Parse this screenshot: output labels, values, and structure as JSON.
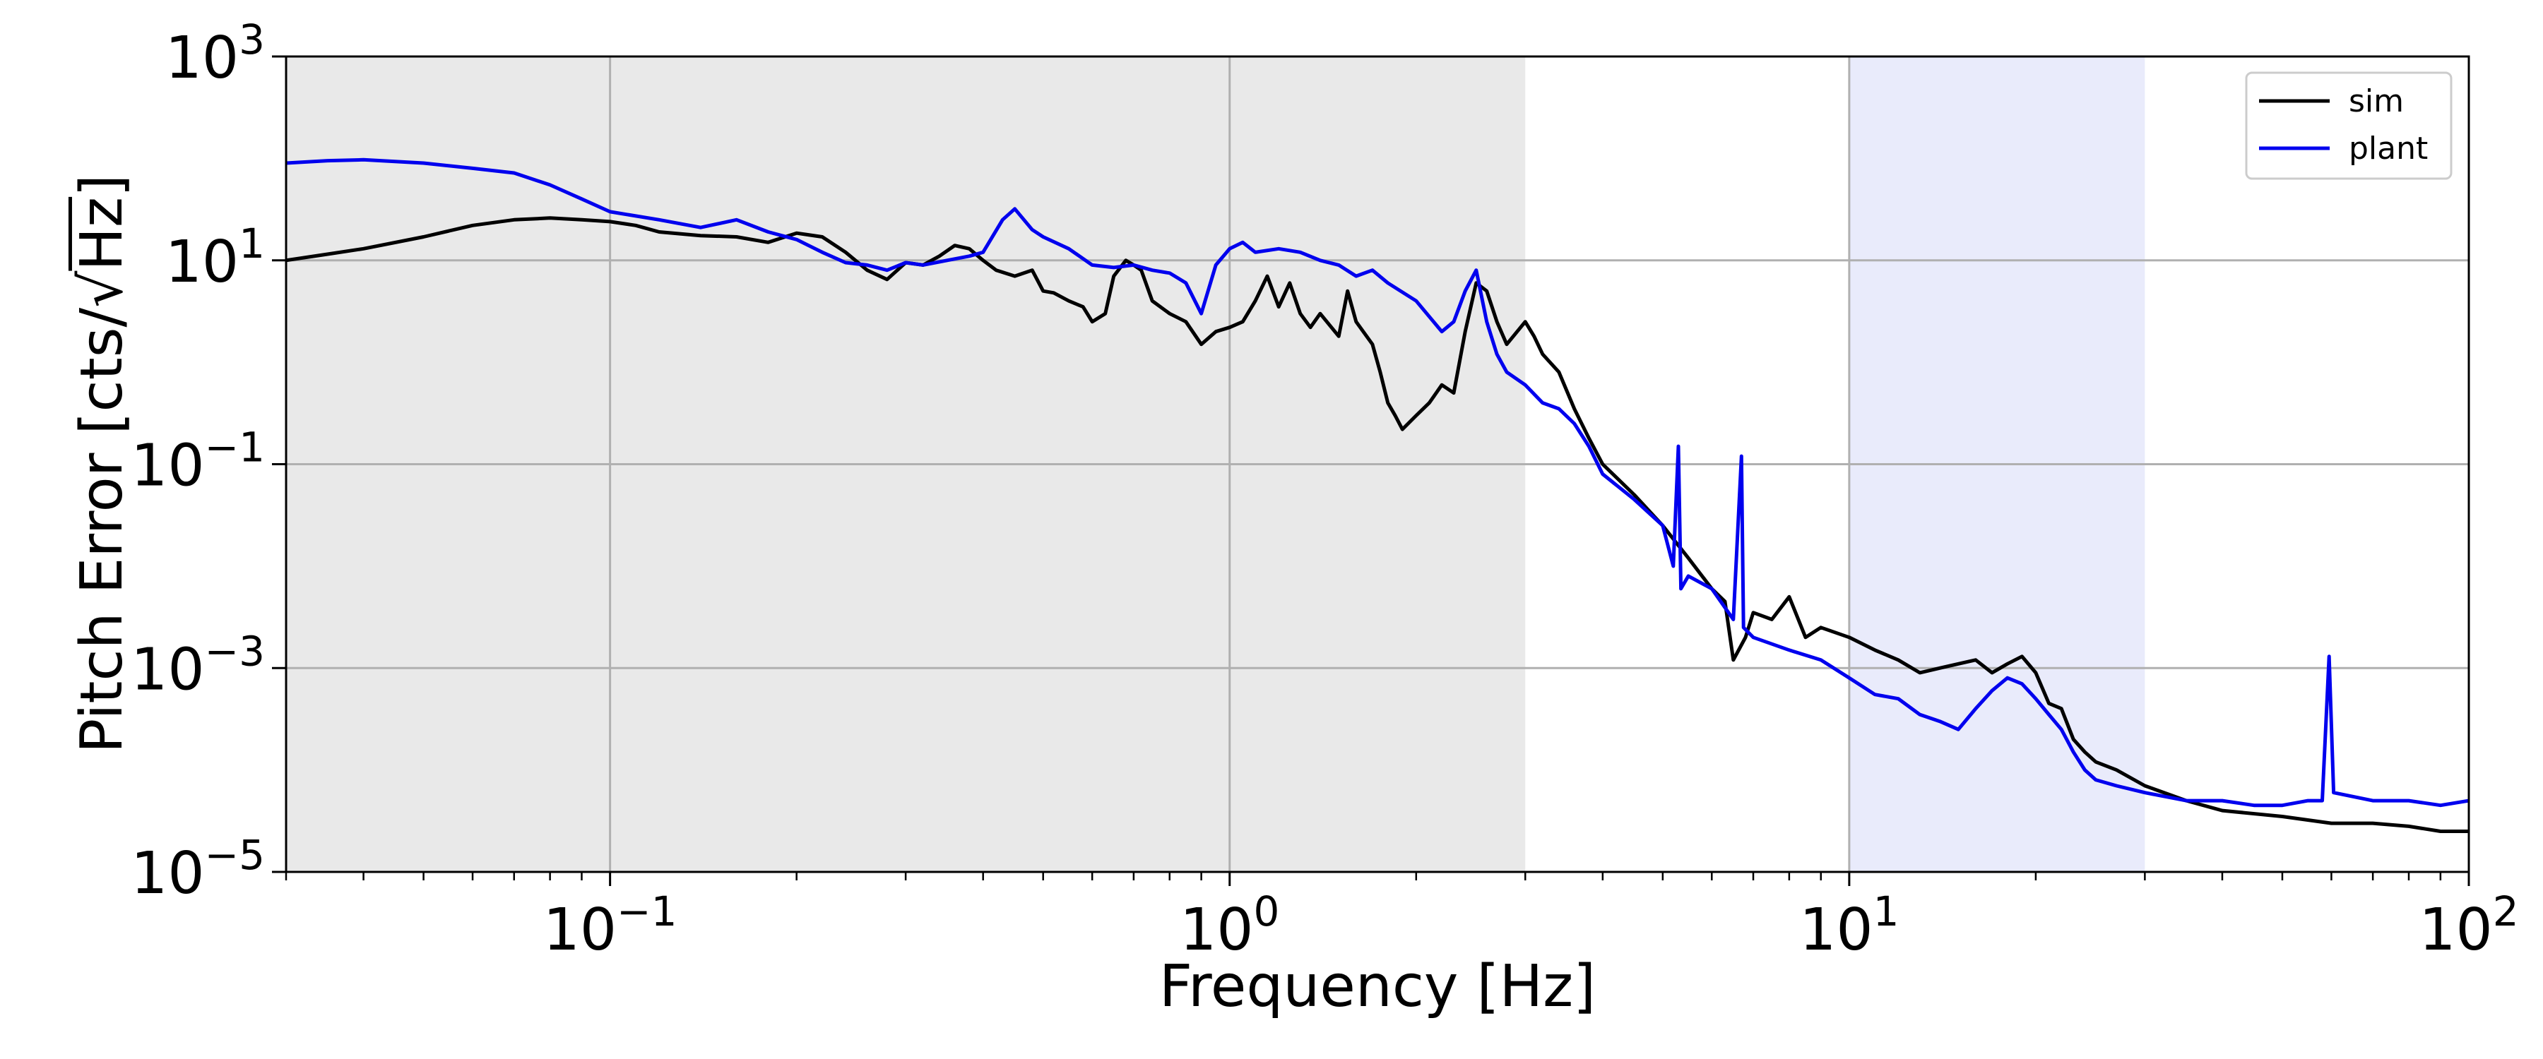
{
  "chart_data": {
    "type": "line",
    "xscale": "log",
    "yscale": "log",
    "xlim": [
      0.03,
      100
    ],
    "ylim": [
      1e-05,
      1000
    ],
    "xlabel": "Frequency [Hz]",
    "ylabel_main": "Pitch Error [cts/",
    "ylabel_sqrt": "√",
    "ylabel_radicand": "Hz",
    "ylabel_close": "]",
    "x_ticks": [
      {
        "value": 0.1,
        "base": "10",
        "exp": "−1"
      },
      {
        "value": 1,
        "base": "10",
        "exp": "0"
      },
      {
        "value": 10,
        "base": "10",
        "exp": "1"
      },
      {
        "value": 100,
        "base": "10",
        "exp": "2"
      }
    ],
    "y_ticks": [
      {
        "value": 1e-05,
        "base": "10",
        "exp": "−5"
      },
      {
        "value": 0.001,
        "base": "10",
        "exp": "−3"
      },
      {
        "value": 0.1,
        "base": "10",
        "exp": "−1"
      },
      {
        "value": 10,
        "base": "10",
        "exp": "1"
      },
      {
        "value": 1000,
        "base": "10",
        "exp": "3"
      }
    ],
    "grid": true,
    "legend_position": "top-right",
    "shaded_regions": [
      {
        "x": [
          0.03,
          3
        ],
        "color": "#e9e9e9"
      },
      {
        "x": [
          10,
          30
        ],
        "color": "#e9ebfb"
      }
    ],
    "series": [
      {
        "name": "sim",
        "color": "#000000",
        "points": [
          [
            0.03,
            10
          ],
          [
            0.035,
            11.5
          ],
          [
            0.04,
            13
          ],
          [
            0.05,
            17
          ],
          [
            0.06,
            22
          ],
          [
            0.07,
            25
          ],
          [
            0.08,
            26
          ],
          [
            0.09,
            25
          ],
          [
            0.1,
            24
          ],
          [
            0.11,
            22
          ],
          [
            0.12,
            19
          ],
          [
            0.14,
            17.5
          ],
          [
            0.16,
            17
          ],
          [
            0.18,
            15
          ],
          [
            0.2,
            18.5
          ],
          [
            0.22,
            17
          ],
          [
            0.24,
            12
          ],
          [
            0.26,
            8
          ],
          [
            0.28,
            6.5
          ],
          [
            0.3,
            9.5
          ],
          [
            0.32,
            9
          ],
          [
            0.34,
            11
          ],
          [
            0.36,
            14
          ],
          [
            0.38,
            13
          ],
          [
            0.4,
            10
          ],
          [
            0.42,
            8
          ],
          [
            0.45,
            7
          ],
          [
            0.48,
            8
          ],
          [
            0.5,
            5
          ],
          [
            0.52,
            4.8
          ],
          [
            0.55,
            4
          ],
          [
            0.58,
            3.5
          ],
          [
            0.6,
            2.5
          ],
          [
            0.63,
            3
          ],
          [
            0.65,
            7
          ],
          [
            0.68,
            10
          ],
          [
            0.7,
            9
          ],
          [
            0.72,
            8
          ],
          [
            0.75,
            4
          ],
          [
            0.8,
            3
          ],
          [
            0.85,
            2.5
          ],
          [
            0.9,
            1.5
          ],
          [
            0.95,
            2
          ],
          [
            1.0,
            2.2
          ],
          [
            1.05,
            2.5
          ],
          [
            1.1,
            4
          ],
          [
            1.15,
            7
          ],
          [
            1.2,
            3.5
          ],
          [
            1.25,
            6
          ],
          [
            1.3,
            3
          ],
          [
            1.35,
            2.2
          ],
          [
            1.4,
            3
          ],
          [
            1.5,
            1.8
          ],
          [
            1.55,
            5
          ],
          [
            1.6,
            2.5
          ],
          [
            1.7,
            1.5
          ],
          [
            1.75,
            0.8
          ],
          [
            1.8,
            0.4
          ],
          [
            1.85,
            0.3
          ],
          [
            1.9,
            0.22
          ],
          [
            2.0,
            0.3
          ],
          [
            2.1,
            0.4
          ],
          [
            2.2,
            0.6
          ],
          [
            2.3,
            0.5
          ],
          [
            2.4,
            2
          ],
          [
            2.5,
            6
          ],
          [
            2.6,
            5
          ],
          [
            2.7,
            2.5
          ],
          [
            2.8,
            1.5
          ],
          [
            3.0,
            2.5
          ],
          [
            3.1,
            1.8
          ],
          [
            3.2,
            1.2
          ],
          [
            3.4,
            0.8
          ],
          [
            3.6,
            0.35
          ],
          [
            3.8,
            0.18
          ],
          [
            4.0,
            0.1
          ],
          [
            4.5,
            0.05
          ],
          [
            5.0,
            0.025
          ],
          [
            5.5,
            0.012
          ],
          [
            6.0,
            0.006
          ],
          [
            6.3,
            0.0045
          ],
          [
            6.5,
            0.0012
          ],
          [
            6.8,
            0.002
          ],
          [
            7.0,
            0.0035
          ],
          [
            7.5,
            0.003
          ],
          [
            8.0,
            0.005
          ],
          [
            8.5,
            0.002
          ],
          [
            9,
            0.0025
          ],
          [
            10,
            0.002
          ],
          [
            11,
            0.0015
          ],
          [
            12,
            0.0012
          ],
          [
            13,
            0.0009
          ],
          [
            14,
            0.001
          ],
          [
            15,
            0.0011
          ],
          [
            16,
            0.0012
          ],
          [
            17,
            0.0009
          ],
          [
            18,
            0.0011
          ],
          [
            19,
            0.0013
          ],
          [
            20,
            0.0009
          ],
          [
            21,
            0.00045
          ],
          [
            22,
            0.0004
          ],
          [
            23,
            0.0002
          ],
          [
            24,
            0.00015
          ],
          [
            25,
            0.00012
          ],
          [
            27,
            0.0001
          ],
          [
            30,
            7e-05
          ],
          [
            35,
            5e-05
          ],
          [
            40,
            4e-05
          ],
          [
            50,
            3.5e-05
          ],
          [
            60,
            3e-05
          ],
          [
            70,
            3e-05
          ],
          [
            80,
            2.8e-05
          ],
          [
            90,
            2.5e-05
          ],
          [
            100,
            2.5e-05
          ]
        ]
      },
      {
        "name": "plant",
        "color": "#0000ee",
        "points": [
          [
            0.03,
            90
          ],
          [
            0.035,
            95
          ],
          [
            0.04,
            97
          ],
          [
            0.05,
            90
          ],
          [
            0.06,
            80
          ],
          [
            0.07,
            72
          ],
          [
            0.08,
            55
          ],
          [
            0.09,
            40
          ],
          [
            0.1,
            30
          ],
          [
            0.12,
            25
          ],
          [
            0.14,
            21
          ],
          [
            0.16,
            25
          ],
          [
            0.18,
            19
          ],
          [
            0.2,
            16
          ],
          [
            0.22,
            12
          ],
          [
            0.24,
            9.5
          ],
          [
            0.26,
            9
          ],
          [
            0.28,
            8
          ],
          [
            0.3,
            9.5
          ],
          [
            0.32,
            9
          ],
          [
            0.35,
            10
          ],
          [
            0.38,
            11
          ],
          [
            0.4,
            12
          ],
          [
            0.43,
            25
          ],
          [
            0.45,
            32
          ],
          [
            0.48,
            20
          ],
          [
            0.5,
            17
          ],
          [
            0.55,
            13
          ],
          [
            0.6,
            9
          ],
          [
            0.65,
            8.5
          ],
          [
            0.7,
            9
          ],
          [
            0.75,
            8
          ],
          [
            0.8,
            7.5
          ],
          [
            0.85,
            6
          ],
          [
            0.9,
            3
          ],
          [
            0.95,
            9
          ],
          [
            1.0,
            13
          ],
          [
            1.05,
            15
          ],
          [
            1.1,
            12
          ],
          [
            1.2,
            13
          ],
          [
            1.3,
            12
          ],
          [
            1.4,
            10
          ],
          [
            1.5,
            9
          ],
          [
            1.6,
            7
          ],
          [
            1.7,
            8
          ],
          [
            1.8,
            6
          ],
          [
            2.0,
            4
          ],
          [
            2.2,
            2
          ],
          [
            2.3,
            2.5
          ],
          [
            2.4,
            5
          ],
          [
            2.5,
            8
          ],
          [
            2.6,
            2.5
          ],
          [
            2.7,
            1.2
          ],
          [
            2.8,
            0.8
          ],
          [
            3.0,
            0.6
          ],
          [
            3.2,
            0.4
          ],
          [
            3.4,
            0.35
          ],
          [
            3.6,
            0.25
          ],
          [
            3.8,
            0.15
          ],
          [
            4.0,
            0.08
          ],
          [
            4.5,
            0.045
          ],
          [
            5.0,
            0.025
          ],
          [
            5.2,
            0.01
          ],
          [
            5.3,
            0.15
          ],
          [
            5.35,
            0.006
          ],
          [
            5.5,
            0.008
          ],
          [
            6.0,
            0.006
          ],
          [
            6.5,
            0.003
          ],
          [
            6.7,
            0.12
          ],
          [
            6.75,
            0.0025
          ],
          [
            7.0,
            0.002
          ],
          [
            8.0,
            0.0015
          ],
          [
            9,
            0.0012
          ],
          [
            10,
            0.0008
          ],
          [
            11,
            0.00055
          ],
          [
            12,
            0.0005
          ],
          [
            13,
            0.00035
          ],
          [
            14,
            0.0003
          ],
          [
            15,
            0.00025
          ],
          [
            16,
            0.0004
          ],
          [
            17,
            0.0006
          ],
          [
            18,
            0.0008
          ],
          [
            19,
            0.0007
          ],
          [
            20,
            0.0005
          ],
          [
            21,
            0.00035
          ],
          [
            22,
            0.00025
          ],
          [
            23,
            0.00015
          ],
          [
            24,
            0.0001
          ],
          [
            25,
            8e-05
          ],
          [
            27,
            7e-05
          ],
          [
            30,
            6e-05
          ],
          [
            35,
            5e-05
          ],
          [
            40,
            5e-05
          ],
          [
            45,
            4.5e-05
          ],
          [
            50,
            4.5e-05
          ],
          [
            55,
            5e-05
          ],
          [
            58,
            5e-05
          ],
          [
            59.5,
            0.0013
          ],
          [
            60.5,
            6e-05
          ],
          [
            70,
            5e-05
          ],
          [
            80,
            5e-05
          ],
          [
            90,
            4.5e-05
          ],
          [
            100,
            5e-05
          ]
        ]
      }
    ]
  }
}
